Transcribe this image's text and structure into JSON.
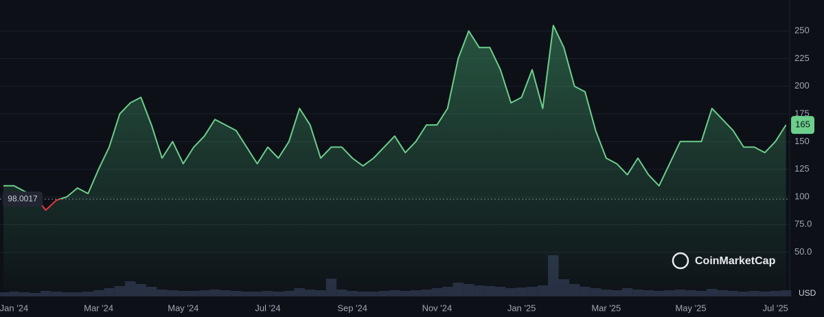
{
  "chart_data": {
    "type": "line",
    "categories": [
      null,
      "Jan '24",
      null,
      null,
      null,
      null,
      null,
      null,
      null,
      "Mar '24",
      null,
      null,
      null,
      null,
      null,
      null,
      null,
      "May '24",
      null,
      null,
      null,
      null,
      null,
      null,
      null,
      "Jul '24",
      null,
      null,
      null,
      null,
      null,
      null,
      null,
      "Sep '24",
      null,
      null,
      null,
      null,
      null,
      null,
      null,
      "Nov '24",
      null,
      null,
      null,
      null,
      null,
      null,
      null,
      "Jan '25",
      null,
      null,
      null,
      null,
      null,
      null,
      null,
      "Mar '25",
      null,
      null,
      null,
      null,
      null,
      null,
      null,
      "May '25",
      null,
      null,
      null,
      null,
      null,
      null,
      null,
      "Jul '25",
      null
    ],
    "series": [
      {
        "color": "#6ccf8c",
        "below_color": "#ea3943",
        "values": [
          110,
          110,
          105,
          100,
          88,
          97,
          100,
          108,
          103,
          125,
          145,
          175,
          185,
          190,
          165,
          135,
          150,
          130,
          145,
          155,
          170,
          165,
          160,
          145,
          130,
          145,
          135,
          150,
          180,
          165,
          135,
          145,
          145,
          135,
          128,
          135,
          145,
          155,
          140,
          150,
          165,
          165,
          180,
          225,
          250,
          235,
          235,
          215,
          185,
          190,
          215,
          180,
          255,
          235,
          200,
          195,
          160,
          135,
          130,
          120,
          135,
          120,
          110,
          130,
          150,
          150,
          150,
          180,
          170,
          160,
          145,
          145,
          140,
          150,
          165
        ]
      }
    ],
    "volume": [
      6,
      7,
      6,
      5,
      8,
      7,
      6,
      6,
      7,
      9,
      12,
      15,
      22,
      18,
      14,
      10,
      9,
      8,
      8,
      9,
      10,
      9,
      8,
      7,
      7,
      8,
      7,
      8,
      12,
      10,
      9,
      26,
      10,
      8,
      7,
      7,
      8,
      9,
      8,
      9,
      10,
      12,
      14,
      20,
      18,
      16,
      15,
      14,
      12,
      13,
      14,
      16,
      60,
      25,
      18,
      14,
      12,
      10,
      9,
      12,
      10,
      9,
      8,
      9,
      10,
      9,
      8,
      11,
      9,
      8,
      7,
      8,
      7,
      8,
      9
    ],
    "volume_lim": [
      0,
      100
    ],
    "ylim": [
      10,
      278
    ],
    "yticks": [
      {
        "value": 50,
        "label": "50.0"
      },
      {
        "value": 75,
        "label": "75.0"
      },
      100,
      125,
      150,
      175,
      200,
      225,
      250
    ],
    "grid": true,
    "baseline": 98.0017,
    "watermark": "CoinMarketCap",
    "currency": "USD"
  }
}
